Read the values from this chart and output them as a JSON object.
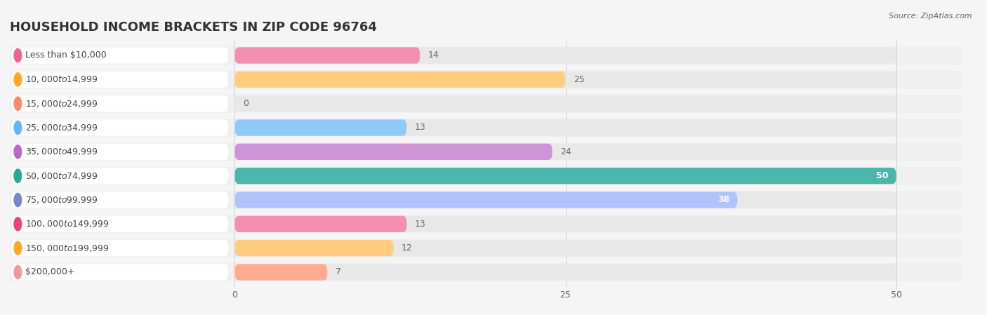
{
  "title": "HOUSEHOLD INCOME BRACKETS IN ZIP CODE 96764",
  "source": "Source: ZipAtlas.com",
  "categories": [
    "Less than $10,000",
    "$10,000 to $14,999",
    "$15,000 to $24,999",
    "$25,000 to $34,999",
    "$35,000 to $49,999",
    "$50,000 to $74,999",
    "$75,000 to $99,999",
    "$100,000 to $149,999",
    "$150,000 to $199,999",
    "$200,000+"
  ],
  "values": [
    14,
    25,
    0,
    13,
    24,
    50,
    38,
    13,
    12,
    7
  ],
  "bar_colors": [
    "#F48FB1",
    "#FFCC80",
    "#FFAB91",
    "#90CAF9",
    "#CE93D8",
    "#4DB6AC",
    "#B0C4FB",
    "#F48FB1",
    "#FFCC80",
    "#FFAB91"
  ],
  "circle_colors": [
    "#F06292",
    "#FFA726",
    "#FF8A65",
    "#64B5F6",
    "#BA68C8",
    "#26A69A",
    "#7986CB",
    "#EC407A",
    "#FFA726",
    "#EF9A9A"
  ],
  "xlim_data": [
    0,
    50
  ],
  "xticks": [
    0,
    25,
    50
  ],
  "background_color": "#f5f5f5",
  "bar_bg_color": "#e8e8e8",
  "row_bg_color": "#efefef",
  "title_fontsize": 13,
  "label_fontsize": 9,
  "value_fontsize": 9
}
